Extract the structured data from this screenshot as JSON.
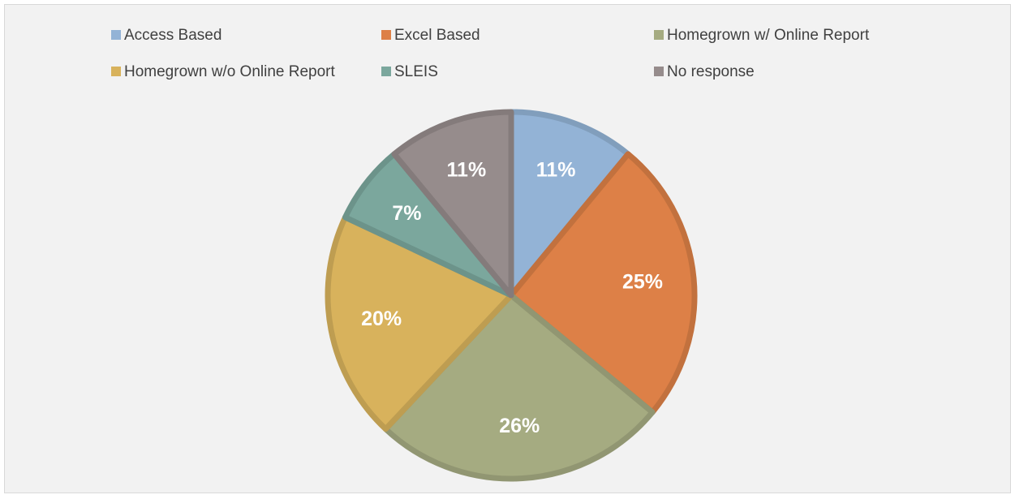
{
  "chart_data": {
    "type": "pie",
    "categories": [
      "Access Based",
      "Excel Based",
      "Homegrown w/ Online Report",
      "Homegrown w/o Online Report",
      "SLEIS",
      "No response"
    ],
    "values": [
      11,
      25,
      26,
      20,
      7,
      11
    ],
    "value_labels": [
      "11%",
      "25%",
      "26%",
      "20%",
      "7%",
      "11%"
    ],
    "colors": [
      "#93b3d6",
      "#dd8047",
      "#a5ab81",
      "#d8b25c",
      "#7ba79d",
      "#968c8c"
    ]
  }
}
